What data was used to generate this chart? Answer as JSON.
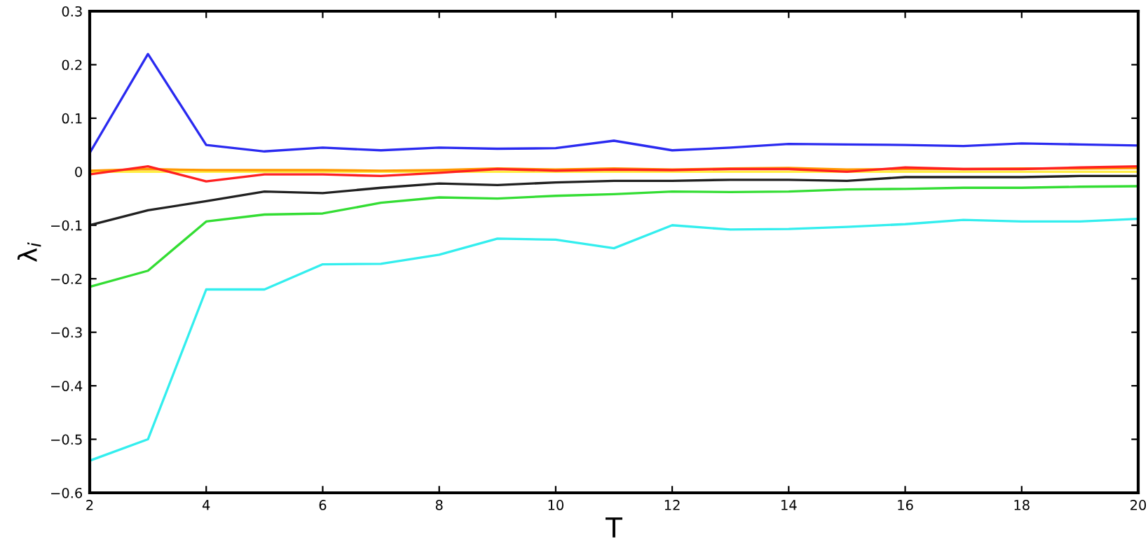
{
  "chart_data": {
    "type": "line",
    "xlabel": "T",
    "ylabel": "λ$_{i}$",
    "x": [
      2,
      3,
      4,
      5,
      6,
      7,
      8,
      9,
      10,
      11,
      12,
      13,
      14,
      15,
      16,
      17,
      18,
      19,
      20
    ],
    "xlim": [
      2,
      20
    ],
    "xticks": [
      2,
      4,
      6,
      8,
      10,
      12,
      14,
      16,
      18,
      20
    ],
    "ylim": [
      -0.6,
      0.3
    ],
    "yticks": [
      {
        "value": -0.6,
        "label": "−0.6"
      },
      {
        "value": -0.5,
        "label": "−0.5"
      },
      {
        "value": -0.4,
        "label": "−0.4"
      },
      {
        "value": -0.3,
        "label": "−0.3"
      },
      {
        "value": -0.2,
        "label": "−0.2"
      },
      {
        "value": -0.1,
        "label": "−0.1"
      },
      0,
      0.1,
      0.2,
      0.3
    ],
    "grid": false,
    "legend": false,
    "series": [
      {
        "color": "#2a2af0",
        "values": [
          0.035,
          0.22,
          0.05,
          0.038,
          0.045,
          0.04,
          0.045,
          0.043,
          0.044,
          0.058,
          0.04,
          0.045,
          0.052,
          0.051,
          0.05,
          0.048,
          0.053,
          0.051,
          0.049
        ]
      },
      {
        "color": "#ffee44",
        "values": [
          0,
          0,
          0,
          0,
          0,
          0,
          0,
          0,
          0,
          0,
          0,
          0,
          0,
          0,
          0,
          0,
          0,
          0,
          0
        ]
      },
      {
        "color": "#ff9900",
        "values": [
          0.002,
          0.005,
          0.003,
          0.003,
          0.003,
          0.002,
          0.003,
          0.006,
          0.004,
          0.006,
          0.004,
          0.006,
          0.007,
          0.004,
          0.005,
          0.005,
          0.006,
          0.006,
          0.007
        ]
      },
      {
        "color": "#ff2020",
        "values": [
          -0.005,
          0.01,
          -0.018,
          -0.005,
          -0.005,
          -0.008,
          -0.002,
          0.005,
          0.002,
          0.004,
          0.003,
          0.005,
          0.005,
          0.0,
          0.008,
          0.005,
          0.005,
          0.008,
          0.01
        ]
      },
      {
        "color": "#202020",
        "values": [
          -0.1,
          -0.072,
          -0.055,
          -0.037,
          -0.04,
          -0.03,
          -0.022,
          -0.025,
          -0.02,
          -0.017,
          -0.017,
          -0.015,
          -0.015,
          -0.017,
          -0.01,
          -0.01,
          -0.01,
          -0.008,
          -0.008
        ]
      },
      {
        "color": "#33dd33",
        "values": [
          -0.215,
          -0.185,
          -0.093,
          -0.08,
          -0.078,
          -0.058,
          -0.048,
          -0.05,
          -0.045,
          -0.042,
          -0.037,
          -0.038,
          -0.037,
          -0.033,
          -0.032,
          -0.03,
          -0.03,
          -0.028,
          -0.027
        ]
      },
      {
        "color": "#33eeee",
        "values": [
          -0.54,
          -0.5,
          -0.22,
          -0.22,
          -0.173,
          -0.172,
          -0.155,
          -0.125,
          -0.127,
          -0.143,
          -0.1,
          -0.108,
          -0.107,
          -0.103,
          -0.098,
          -0.09,
          -0.093,
          -0.093,
          -0.088
        ]
      }
    ]
  }
}
